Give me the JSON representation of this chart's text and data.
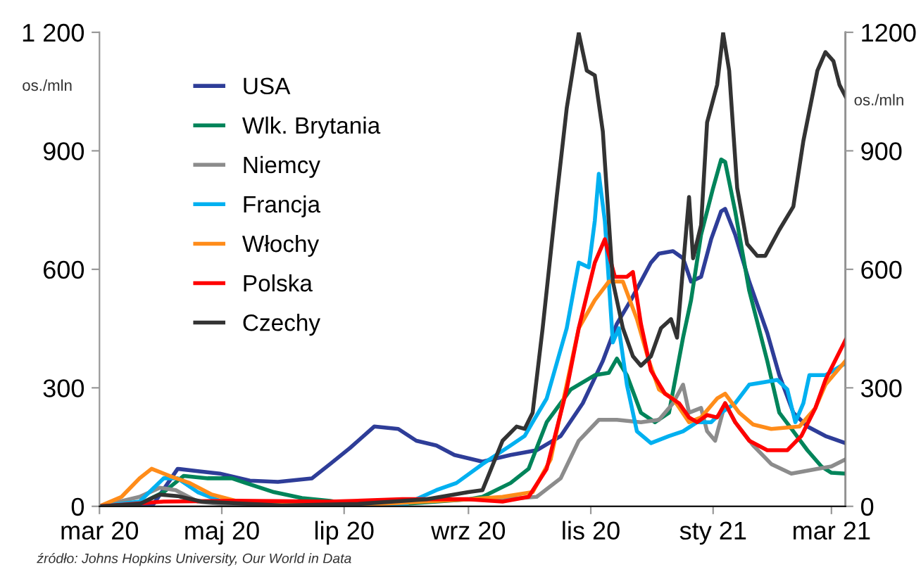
{
  "chart_data": {
    "type": "line",
    "ylabel": "os./mln",
    "y2label": "os./mln",
    "xlim": [
      "2020-03-01",
      "2021-03-08"
    ],
    "xticks": [
      {
        "value": "2020-03-01",
        "label": "mar 20"
      },
      {
        "value": "2020-05-01",
        "label": "maj 20"
      },
      {
        "value": "2020-07-01",
        "label": "lip 20"
      },
      {
        "value": "2020-09-01",
        "label": "wrz 20"
      },
      {
        "value": "2020-11-01",
        "label": "lis 20"
      },
      {
        "value": "2021-01-01",
        "label": "sty 21"
      },
      {
        "value": "2021-03-01",
        "label": "mar 21"
      }
    ],
    "ylim": [
      0,
      1200
    ],
    "yticks": [
      0,
      300,
      600,
      900,
      {
        "value": 1200,
        "label": "1 200"
      }
    ],
    "y2lim": [
      0,
      1200
    ],
    "y2ticks": [
      0,
      300,
      600,
      900,
      1200
    ],
    "grid": false,
    "legend": "top left",
    "line_style": "solid",
    "marker": "none",
    "annotations": [
      "źródło: Johns Hopkins University, Our World in Data"
    ],
    "series": [
      {
        "name": "USA",
        "color": "#2e3d98",
        "x": [
          "2020-03-01",
          "2020-03-28",
          "2020-04-09",
          "2020-04-19",
          "2020-04-30",
          "2020-05-15",
          "2020-05-29",
          "2020-06-15",
          "2020-06-24",
          "2020-07-04",
          "2020-07-16",
          "2020-07-28",
          "2020-08-06",
          "2020-08-16",
          "2020-08-25",
          "2020-09-08",
          "2020-09-22",
          "2020-10-05",
          "2020-10-17",
          "2020-10-28",
          "2020-11-07",
          "2020-11-14",
          "2020-11-21",
          "2020-12-01",
          "2020-12-05",
          "2020-12-12",
          "2020-12-17",
          "2020-12-21",
          "2020-12-26",
          "2020-12-31",
          "2021-01-05",
          "2021-01-07",
          "2021-01-12",
          "2021-01-19",
          "2021-01-28",
          "2021-02-03",
          "2021-02-10",
          "2021-02-17",
          "2021-02-26",
          "2021-03-08"
        ],
        "values": [
          0,
          6,
          95,
          89,
          83,
          65,
          62,
          71,
          107,
          148,
          202,
          196,
          166,
          154,
          130,
          113,
          130,
          142,
          178,
          261,
          368,
          462,
          522,
          617,
          640,
          646,
          628,
          569,
          581,
          676,
          747,
          753,
          688,
          569,
          439,
          332,
          237,
          202,
          178,
          160
        ]
      },
      {
        "name": "Wlk. Brytania",
        "color": "#00845a",
        "x": [
          "2020-03-01",
          "2020-03-21",
          "2020-04-02",
          "2020-04-12",
          "2020-04-24",
          "2020-05-06",
          "2020-05-13",
          "2020-05-27",
          "2020-06-10",
          "2020-06-24",
          "2020-07-08",
          "2020-07-30",
          "2020-09-01",
          "2020-09-08",
          "2020-09-22",
          "2020-10-01",
          "2020-10-10",
          "2020-10-22",
          "2020-11-03",
          "2020-11-10",
          "2020-11-14",
          "2020-11-19",
          "2020-11-26",
          "2020-12-03",
          "2020-12-10",
          "2020-12-17",
          "2020-12-21",
          "2020-12-26",
          "2021-01-01",
          "2021-01-05",
          "2021-01-07",
          "2021-01-12",
          "2021-01-19",
          "2021-01-28",
          "2021-02-03",
          "2021-02-10",
          "2021-02-17",
          "2021-02-24",
          "2021-03-01",
          "2021-03-08"
        ],
        "values": [
          0,
          6,
          36,
          77,
          71,
          71,
          59,
          36,
          21,
          14,
          2,
          6,
          18,
          24,
          59,
          95,
          213,
          296,
          332,
          338,
          374,
          332,
          237,
          213,
          237,
          427,
          522,
          688,
          806,
          878,
          872,
          747,
          546,
          368,
          237,
          190,
          142,
          101,
          85,
          83
        ]
      },
      {
        "name": "Niemcy",
        "color": "#8c8c8c",
        "x": [
          "2020-03-01",
          "2020-03-21",
          "2020-03-31",
          "2020-04-08",
          "2020-04-19",
          "2020-05-08",
          "2020-06-24",
          "2020-09-01",
          "2020-09-18",
          "2020-10-05",
          "2020-10-17",
          "2020-10-26",
          "2020-11-05",
          "2020-11-14",
          "2020-11-26",
          "2020-12-05",
          "2020-12-12",
          "2020-12-17",
          "2020-12-20",
          "2020-12-26",
          "2020-12-29",
          "2021-01-02",
          "2021-01-07",
          "2021-01-12",
          "2021-01-21",
          "2021-01-30",
          "2021-02-09",
          "2021-02-22",
          "2021-03-01",
          "2021-03-08"
        ],
        "values": [
          0,
          24,
          47,
          41,
          12,
          2,
          6,
          18,
          18,
          24,
          71,
          166,
          219,
          219,
          213,
          219,
          261,
          308,
          237,
          249,
          190,
          166,
          261,
          213,
          154,
          107,
          83,
          95,
          101,
          119
        ]
      },
      {
        "name": "Francja",
        "color": "#00b0f0",
        "x": [
          "2020-03-01",
          "2020-03-21",
          "2020-04-02",
          "2020-04-09",
          "2020-04-19",
          "2020-04-30",
          "2020-05-20",
          "2020-07-30",
          "2020-08-16",
          "2020-08-26",
          "2020-09-08",
          "2020-09-22",
          "2020-09-29",
          "2020-10-03",
          "2020-10-10",
          "2020-10-20",
          "2020-10-26",
          "2020-10-31",
          "2020-11-03",
          "2020-11-05",
          "2020-11-08",
          "2020-11-12",
          "2020-11-15",
          "2020-11-19",
          "2020-11-24",
          "2020-12-01",
          "2020-12-10",
          "2020-12-17",
          "2020-12-24",
          "2020-12-31",
          "2021-01-05",
          "2021-01-12",
          "2021-01-19",
          "2021-01-26",
          "2021-02-02",
          "2021-02-07",
          "2021-02-11",
          "2021-02-15",
          "2021-02-18",
          "2021-02-26",
          "2021-03-08"
        ],
        "values": [
          0,
          12,
          71,
          71,
          36,
          14,
          6,
          2,
          41,
          59,
          107,
          154,
          178,
          213,
          273,
          451,
          617,
          605,
          723,
          842,
          723,
          415,
          451,
          308,
          190,
          160,
          178,
          190,
          213,
          213,
          237,
          261,
          308,
          314,
          320,
          296,
          213,
          261,
          332,
          332,
          362
        ]
      },
      {
        "name": "Włochy",
        "color": "#ff8c1a",
        "x": [
          "2020-03-01",
          "2020-03-12",
          "2020-03-21",
          "2020-03-27",
          "2020-04-05",
          "2020-04-15",
          "2020-04-26",
          "2020-05-08",
          "2020-05-31",
          "2020-07-18",
          "2020-09-01",
          "2020-09-18",
          "2020-10-03",
          "2020-10-12",
          "2020-10-19",
          "2020-10-26",
          "2020-11-03",
          "2020-11-10",
          "2020-11-17",
          "2020-11-24",
          "2020-11-30",
          "2020-12-05",
          "2020-12-12",
          "2020-12-20",
          "2020-12-26",
          "2021-01-03",
          "2021-01-07",
          "2021-01-14",
          "2021-01-21",
          "2021-01-30",
          "2021-02-13",
          "2021-02-21",
          "2021-02-26",
          "2021-03-08"
        ],
        "values": [
          0,
          24,
          71,
          95,
          77,
          59,
          30,
          14,
          6,
          6,
          18,
          24,
          36,
          119,
          285,
          451,
          522,
          569,
          569,
          474,
          368,
          296,
          273,
          213,
          225,
          273,
          285,
          237,
          207,
          196,
          202,
          249,
          308,
          368
        ]
      },
      {
        "name": "Polska",
        "color": "#ff0000",
        "x": [
          "2020-03-01",
          "2020-04-02",
          "2020-05-08",
          "2020-06-24",
          "2020-07-30",
          "2020-09-01",
          "2020-09-18",
          "2020-10-01",
          "2020-10-10",
          "2020-10-20",
          "2020-10-26",
          "2020-11-03",
          "2020-11-08",
          "2020-11-13",
          "2020-11-19",
          "2020-11-22",
          "2020-11-26",
          "2020-12-01",
          "2020-12-08",
          "2020-12-15",
          "2020-12-20",
          "2020-12-24",
          "2020-12-29",
          "2021-01-03",
          "2021-01-07",
          "2021-01-12",
          "2021-01-19",
          "2021-01-28",
          "2021-02-07",
          "2021-02-14",
          "2021-02-21",
          "2021-02-26",
          "2021-03-08"
        ],
        "values": [
          0,
          12,
          14,
          12,
          18,
          18,
          12,
          24,
          95,
          296,
          451,
          617,
          676,
          581,
          581,
          593,
          462,
          344,
          285,
          261,
          225,
          213,
          231,
          225,
          261,
          213,
          166,
          142,
          142,
          178,
          249,
          320,
          421
        ]
      },
      {
        "name": "Czechy",
        "color": "#333333",
        "x": [
          "2020-03-01",
          "2020-03-21",
          "2020-03-31",
          "2020-04-09",
          "2020-04-21",
          "2020-05-31",
          "2020-07-08",
          "2020-08-11",
          "2020-09-01",
          "2020-09-08",
          "2020-09-18",
          "2020-09-25",
          "2020-09-29",
          "2020-10-03",
          "2020-10-08",
          "2020-10-15",
          "2020-10-20",
          "2020-10-26",
          "2020-10-30",
          "2020-11-03",
          "2020-11-07",
          "2020-11-12",
          "2020-11-17",
          "2020-11-22",
          "2020-11-26",
          "2020-12-01",
          "2020-12-06",
          "2020-12-11",
          "2020-12-14",
          "2020-12-20",
          "2020-12-22",
          "2020-12-26",
          "2020-12-29",
          "2021-01-03",
          "2021-01-06",
          "2021-01-09",
          "2021-01-13",
          "2021-01-18",
          "2021-01-23",
          "2021-01-27",
          "2021-02-03",
          "2021-02-10",
          "2021-02-15",
          "2021-02-22",
          "2021-02-26",
          "2021-03-02",
          "2021-03-05",
          "2021-03-08"
        ],
        "values": [
          0,
          6,
          30,
          26,
          12,
          2,
          6,
          18,
          36,
          41,
          166,
          202,
          196,
          237,
          451,
          783,
          1008,
          1198,
          1103,
          1091,
          949,
          569,
          451,
          380,
          356,
          380,
          451,
          474,
          427,
          783,
          628,
          712,
          972,
          1067,
          1198,
          1103,
          806,
          664,
          634,
          634,
          700,
          759,
          925,
          1103,
          1150,
          1127,
          1067,
          1038
        ]
      }
    ]
  }
}
